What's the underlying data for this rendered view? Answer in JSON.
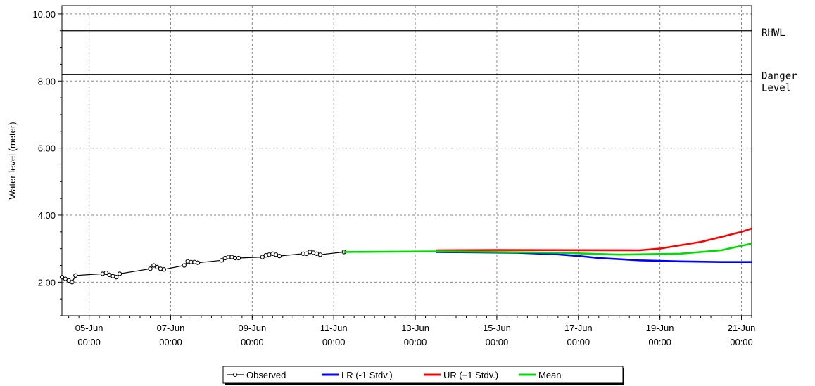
{
  "chart_data": {
    "type": "line",
    "title": "",
    "xlabel": "",
    "ylabel": "Water level (meter)",
    "ylim": [
      1.0,
      10.25
    ],
    "xlim": [
      "2021-06-04T08:00",
      "2021-06-21T06:00"
    ],
    "grid": true,
    "legend_position": "bottom",
    "x_ticks": [
      {
        "x": "2021-06-05T00:00",
        "date": "05-Jun",
        "time": "00:00"
      },
      {
        "x": "2021-06-07T00:00",
        "date": "07-Jun",
        "time": "00:00"
      },
      {
        "x": "2021-06-09T00:00",
        "date": "09-Jun",
        "time": "00:00"
      },
      {
        "x": "2021-06-11T00:00",
        "date": "11-Jun",
        "time": "00:00"
      },
      {
        "x": "2021-06-13T00:00",
        "date": "13-Jun",
        "time": "00:00"
      },
      {
        "x": "2021-06-15T00:00",
        "date": "15-Jun",
        "time": "00:00"
      },
      {
        "x": "2021-06-17T00:00",
        "date": "17-Jun",
        "time": "00:00"
      },
      {
        "x": "2021-06-19T00:00",
        "date": "19-Jun",
        "time": "00:00"
      },
      {
        "x": "2021-06-21T00:00",
        "date": "21-Jun",
        "time": "00:00"
      }
    ],
    "y_ticks": [
      {
        "value": 2,
        "label": "2.00"
      },
      {
        "value": 4,
        "label": "4.00"
      },
      {
        "value": 6,
        "label": "6.00"
      },
      {
        "value": 8,
        "label": "8.00"
      },
      {
        "value": 10,
        "label": "10.00"
      }
    ],
    "reference_lines": [
      {
        "y": 9.5,
        "label_lines": [
          "RHWL"
        ]
      },
      {
        "y": 8.2,
        "label_lines": [
          "Danger",
          "Level"
        ]
      }
    ],
    "series": [
      {
        "name": "Observed",
        "color": "#000000",
        "marker": "circle",
        "points": [
          {
            "x": "2021-06-04T08:00",
            "y": 2.15
          },
          {
            "x": "2021-06-04T10:00",
            "y": 2.1
          },
          {
            "x": "2021-06-04T12:00",
            "y": 2.05
          },
          {
            "x": "2021-06-04T14:00",
            "y": 2.0
          },
          {
            "x": "2021-06-04T16:00",
            "y": 2.2
          },
          {
            "x": "2021-06-05T08:00",
            "y": 2.25
          },
          {
            "x": "2021-06-05T10:00",
            "y": 2.28
          },
          {
            "x": "2021-06-05T12:00",
            "y": 2.22
          },
          {
            "x": "2021-06-05T14:00",
            "y": 2.18
          },
          {
            "x": "2021-06-05T16:00",
            "y": 2.15
          },
          {
            "x": "2021-06-05T18:00",
            "y": 2.25
          },
          {
            "x": "2021-06-06T12:00",
            "y": 2.4
          },
          {
            "x": "2021-06-06T14:00",
            "y": 2.5
          },
          {
            "x": "2021-06-06T16:00",
            "y": 2.45
          },
          {
            "x": "2021-06-06T18:00",
            "y": 2.4
          },
          {
            "x": "2021-06-06T20:00",
            "y": 2.38
          },
          {
            "x": "2021-06-07T08:00",
            "y": 2.5
          },
          {
            "x": "2021-06-07T10:00",
            "y": 2.62
          },
          {
            "x": "2021-06-07T12:00",
            "y": 2.6
          },
          {
            "x": "2021-06-07T14:00",
            "y": 2.6
          },
          {
            "x": "2021-06-07T16:00",
            "y": 2.58
          },
          {
            "x": "2021-06-08T06:00",
            "y": 2.65
          },
          {
            "x": "2021-06-08T08:00",
            "y": 2.72
          },
          {
            "x": "2021-06-08T10:00",
            "y": 2.75
          },
          {
            "x": "2021-06-08T12:00",
            "y": 2.75
          },
          {
            "x": "2021-06-08T14:00",
            "y": 2.72
          },
          {
            "x": "2021-06-08T16:00",
            "y": 2.72
          },
          {
            "x": "2021-06-09T06:00",
            "y": 2.75
          },
          {
            "x": "2021-06-09T08:00",
            "y": 2.8
          },
          {
            "x": "2021-06-09T10:00",
            "y": 2.82
          },
          {
            "x": "2021-06-09T12:00",
            "y": 2.85
          },
          {
            "x": "2021-06-09T14:00",
            "y": 2.82
          },
          {
            "x": "2021-06-09T16:00",
            "y": 2.78
          },
          {
            "x": "2021-06-10T06:00",
            "y": 2.85
          },
          {
            "x": "2021-06-10T08:00",
            "y": 2.85
          },
          {
            "x": "2021-06-10T10:00",
            "y": 2.9
          },
          {
            "x": "2021-06-10T12:00",
            "y": 2.88
          },
          {
            "x": "2021-06-10T14:00",
            "y": 2.85
          },
          {
            "x": "2021-06-10T16:00",
            "y": 2.82
          },
          {
            "x": "2021-06-11T06:00",
            "y": 2.9
          }
        ]
      },
      {
        "name": "LR (-1 Stdv.)",
        "color": "#0000ff",
        "marker": "none",
        "points": [
          {
            "x": "2021-06-13T12:00",
            "y": 2.9
          },
          {
            "x": "2021-06-15T12:00",
            "y": 2.88
          },
          {
            "x": "2021-06-16T12:00",
            "y": 2.83
          },
          {
            "x": "2021-06-17T00:00",
            "y": 2.78
          },
          {
            "x": "2021-06-17T12:00",
            "y": 2.72
          },
          {
            "x": "2021-06-18T12:00",
            "y": 2.65
          },
          {
            "x": "2021-06-19T12:00",
            "y": 2.62
          },
          {
            "x": "2021-06-20T12:00",
            "y": 2.6
          },
          {
            "x": "2021-06-21T06:00",
            "y": 2.6
          }
        ]
      },
      {
        "name": "UR (+1 Stdv.)",
        "color": "#ff0000",
        "marker": "none",
        "points": [
          {
            "x": "2021-06-13T12:00",
            "y": 2.95
          },
          {
            "x": "2021-06-15T00:00",
            "y": 2.96
          },
          {
            "x": "2021-06-18T12:00",
            "y": 2.95
          },
          {
            "x": "2021-06-19T00:00",
            "y": 3.0
          },
          {
            "x": "2021-06-19T12:00",
            "y": 3.1
          },
          {
            "x": "2021-06-20T00:00",
            "y": 3.2
          },
          {
            "x": "2021-06-20T12:00",
            "y": 3.35
          },
          {
            "x": "2021-06-21T00:00",
            "y": 3.5
          },
          {
            "x": "2021-06-21T06:00",
            "y": 3.6
          }
        ]
      },
      {
        "name": "Mean",
        "color": "#00dd00",
        "marker": "none",
        "points": [
          {
            "x": "2021-06-11T06:00",
            "y": 2.9
          },
          {
            "x": "2021-06-13T12:00",
            "y": 2.92
          },
          {
            "x": "2021-06-16T12:00",
            "y": 2.88
          },
          {
            "x": "2021-06-18T00:00",
            "y": 2.82
          },
          {
            "x": "2021-06-19T12:00",
            "y": 2.85
          },
          {
            "x": "2021-06-20T12:00",
            "y": 2.95
          },
          {
            "x": "2021-06-21T06:00",
            "y": 3.15
          }
        ]
      }
    ]
  }
}
